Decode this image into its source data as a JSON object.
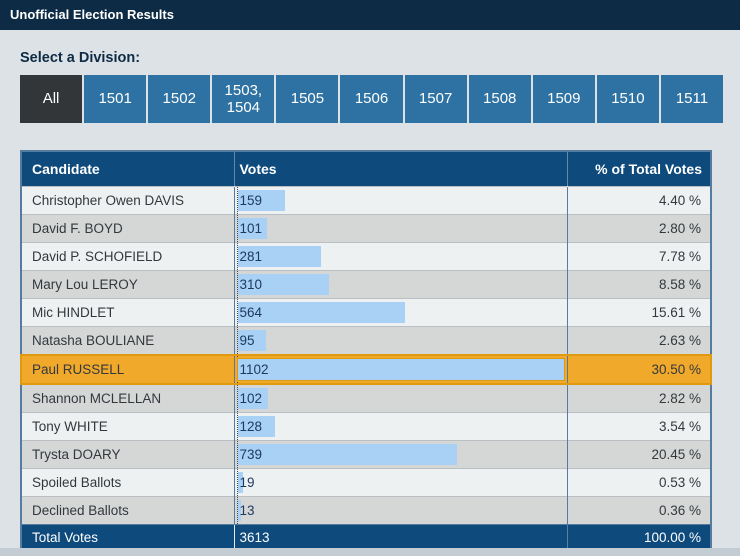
{
  "header": {
    "title": "Unofficial Election Results"
  },
  "division": {
    "label": "Select a Division:",
    "tabs": [
      {
        "label": "All",
        "active": true
      },
      {
        "label": "1501",
        "active": false
      },
      {
        "label": "1502",
        "active": false
      },
      {
        "label": "1503, 1504",
        "active": false
      },
      {
        "label": "1505",
        "active": false
      },
      {
        "label": "1506",
        "active": false
      },
      {
        "label": "1507",
        "active": false
      },
      {
        "label": "1508",
        "active": false
      },
      {
        "label": "1509",
        "active": false
      },
      {
        "label": "1510",
        "active": false
      },
      {
        "label": "1511",
        "active": false
      }
    ]
  },
  "table": {
    "columns": [
      "Candidate",
      "Votes",
      "% of Total Votes"
    ],
    "rows": [
      {
        "candidate": "Christopher Owen DAVIS",
        "votes": 159,
        "pct": "4.40 %",
        "highlight": false
      },
      {
        "candidate": "David F. BOYD",
        "votes": 101,
        "pct": "2.80 %",
        "highlight": false
      },
      {
        "candidate": "David P. SCHOFIELD",
        "votes": 281,
        "pct": "7.78 %",
        "highlight": false
      },
      {
        "candidate": "Mary Lou LEROY",
        "votes": 310,
        "pct": "8.58 %",
        "highlight": false
      },
      {
        "candidate": "Mic HINDLET",
        "votes": 564,
        "pct": "15.61 %",
        "highlight": false
      },
      {
        "candidate": "Natasha BOULIANE",
        "votes": 95,
        "pct": "2.63 %",
        "highlight": false
      },
      {
        "candidate": "Paul RUSSELL",
        "votes": 1102,
        "pct": "30.50 %",
        "highlight": true
      },
      {
        "candidate": "Shannon MCLELLAN",
        "votes": 102,
        "pct": "2.82 %",
        "highlight": false
      },
      {
        "candidate": "Tony WHITE",
        "votes": 128,
        "pct": "3.54 %",
        "highlight": false
      },
      {
        "candidate": "Trysta DOARY",
        "votes": 739,
        "pct": "20.45 %",
        "highlight": false
      },
      {
        "candidate": "Spoiled Ballots",
        "votes": 19,
        "pct": "0.53 %",
        "highlight": false
      },
      {
        "candidate": "Declined Ballots",
        "votes": 13,
        "pct": "0.36 %",
        "highlight": false
      }
    ],
    "total": {
      "label": "Total Votes",
      "votes": 3613,
      "pct": "100.00 %"
    }
  },
  "colors": {
    "titlebar_navy": "#0d2b45",
    "page_background": "#dde2e6",
    "tab_blue": "#2d72a2",
    "tab_active_charcoal": "#333638",
    "table_header_blue": "#0e4a7c",
    "row_light": "#eef1f2",
    "row_gray": "#d5d7d7",
    "bar_blue": "#a9d0f5",
    "highlight_orange": "#f0a92b",
    "highlight_border": "#e09a10"
  }
}
